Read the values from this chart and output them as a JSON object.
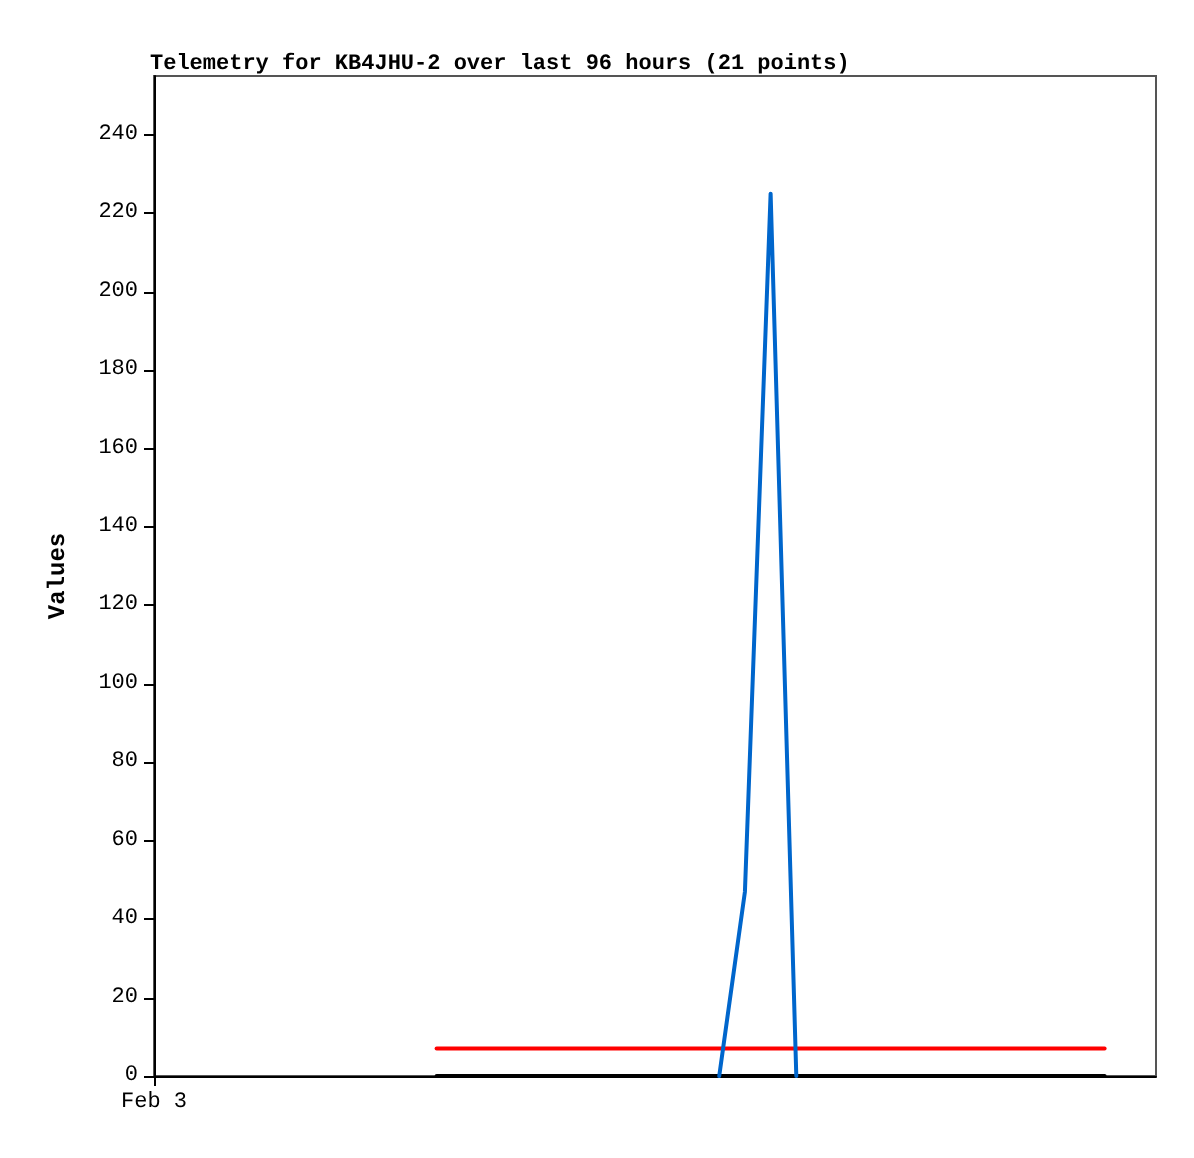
{
  "chart_data": {
    "type": "line",
    "title": "Telemetry for KB4JHU-2 over last 96 hours (21 points)",
    "ylabel": "Values",
    "categories": [
      "Feb 3",
      null,
      null,
      null,
      null,
      null,
      null,
      null,
      null,
      null,
      null,
      null,
      null,
      null,
      null,
      null,
      null,
      null,
      null,
      null,
      null,
      null,
      null,
      null,
      null,
      null,
      null,
      null,
      null,
      null,
      null,
      null,
      null,
      null,
      null,
      null,
      null,
      null,
      null,
      null
    ],
    "series": [
      {
        "color": "#000000",
        "values": [
          null,
          null,
          null,
          null,
          null,
          null,
          null,
          null,
          null,
          null,
          null,
          0,
          0,
          0,
          0,
          0,
          0,
          0,
          0,
          0,
          0,
          0,
          0,
          0,
          0,
          0,
          0,
          0,
          0,
          0,
          0,
          0,
          0,
          0,
          0,
          0,
          0,
          0,
          null,
          null
        ]
      },
      {
        "color": "#ff0000",
        "values": [
          null,
          null,
          null,
          null,
          null,
          null,
          null,
          null,
          null,
          null,
          null,
          7,
          7,
          7,
          7,
          7,
          7,
          7,
          7,
          7,
          7,
          7,
          7,
          7,
          7,
          7,
          7,
          7,
          7,
          7,
          7,
          7,
          7,
          7,
          7,
          7,
          7,
          7,
          null,
          null
        ]
      },
      {
        "color": "#0066cc",
        "values": [
          null,
          null,
          null,
          null,
          null,
          null,
          null,
          null,
          null,
          null,
          null,
          null,
          null,
          null,
          null,
          null,
          null,
          null,
          null,
          null,
          null,
          null,
          0,
          47,
          225,
          0,
          null,
          null,
          null,
          null,
          null,
          null,
          null,
          null,
          null,
          null,
          null,
          null,
          null,
          null
        ]
      }
    ],
    "ylim": [
      0,
      255
    ],
    "yticks": [
      0,
      20,
      40,
      60,
      80,
      100,
      120,
      140,
      160,
      180,
      200,
      220,
      240
    ],
    "grid": false,
    "marker": "none",
    "line_style": "solid"
  }
}
